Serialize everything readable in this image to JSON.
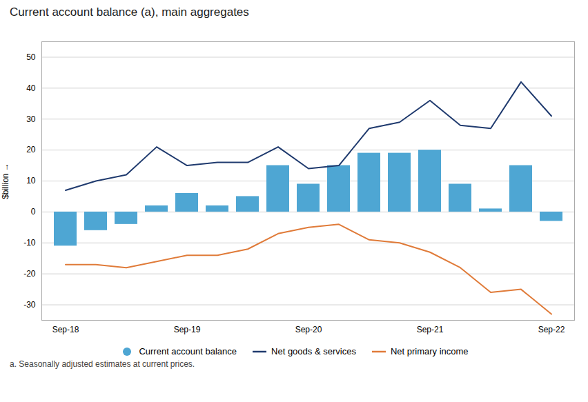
{
  "chart_data": {
    "type": "bar",
    "title": "Current account balance (a), main aggregates",
    "ylabel": "$billion",
    "footnote": "a. Seasonally adjusted estimates at current prices.",
    "categories": [
      "Sep-18",
      null,
      null,
      null,
      "Sep-19",
      null,
      null,
      null,
      "Sep-20",
      null,
      null,
      null,
      "Sep-21",
      null,
      null,
      null,
      "Sep-22"
    ],
    "series": [
      {
        "name": "Current account balance",
        "type": "bar",
        "color": "#4ea6d3",
        "values": [
          -11,
          -6,
          -4,
          2,
          6,
          2,
          5,
          15,
          9,
          15,
          19,
          19,
          20,
          9,
          1,
          15,
          -3
        ]
      },
      {
        "name": "Net goods & services",
        "type": "line",
        "color": "#1f3a6e",
        "values": [
          7,
          10,
          12,
          21,
          15,
          16,
          16,
          21,
          14,
          15,
          27,
          29,
          36,
          28,
          27,
          42,
          31
        ]
      },
      {
        "name": "Net primary income",
        "type": "line",
        "color": "#e07b39",
        "values": [
          -17,
          -17,
          -18,
          -16,
          -14,
          -14,
          -12,
          -7,
          -5,
          -4,
          -9,
          -10,
          -13,
          -18,
          -26,
          -25,
          -33
        ]
      }
    ],
    "ylim": [
      -35,
      55
    ],
    "yticks": [
      -30,
      -20,
      -10,
      0,
      10,
      20,
      30,
      40,
      50
    ],
    "grid": true,
    "legend": "bottom"
  }
}
